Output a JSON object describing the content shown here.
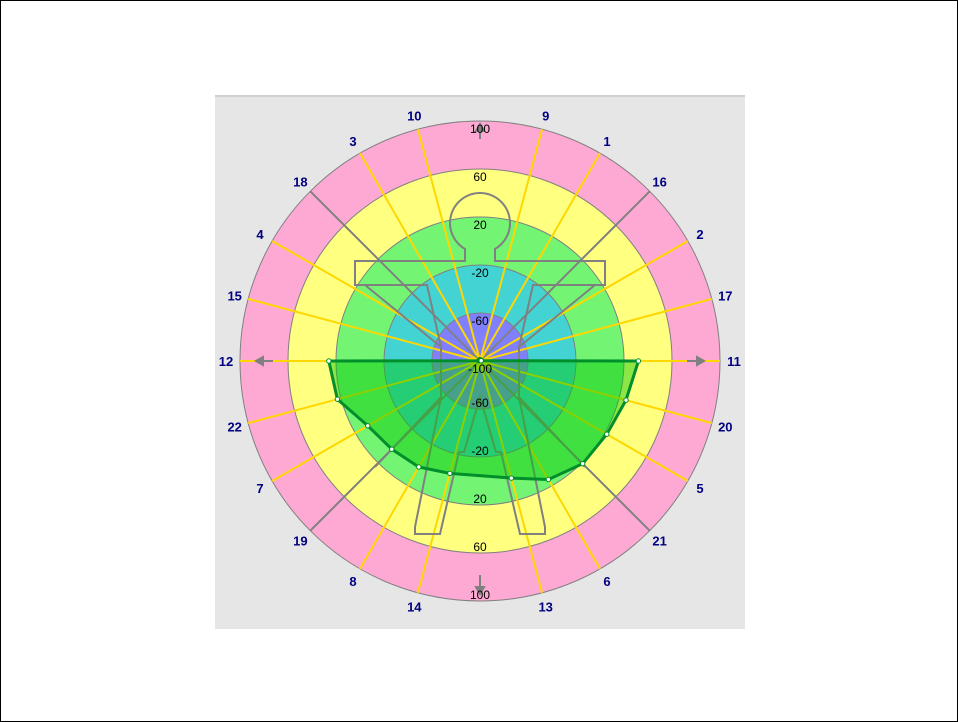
{
  "colors": {
    "ring_100": "#fda9d3",
    "ring_60": "#ffff80",
    "ring_20": "#73f573",
    "ring_neg20": "#44d3d3",
    "ring_neg60": "#8080ff",
    "spoke_yellow": "#ffd700",
    "spoke_gray": "#808080",
    "fill_green": "#00c800",
    "line_green": "#008f2a",
    "label_blue": "#000080",
    "figure": "#808080"
  },
  "chart_data": {
    "type": "polar-target",
    "rings": [
      100,
      60,
      20,
      -20,
      -60,
      -100
    ],
    "r_range": [
      -100,
      100
    ],
    "top_ticks": [
      "100",
      "60",
      "20",
      "-20",
      "-60",
      "-100"
    ],
    "bottom_ticks": [
      "-60",
      "-20",
      "20",
      "60",
      "100"
    ],
    "spokes": [
      {
        "label": "11",
        "angle": 0,
        "style": "yellow"
      },
      {
        "label": "17",
        "angle": 15,
        "style": "yellow"
      },
      {
        "label": "2",
        "angle": 30,
        "style": "yellow"
      },
      {
        "label": "16",
        "angle": 45,
        "style": "gray"
      },
      {
        "label": "1",
        "angle": 60,
        "style": "yellow"
      },
      {
        "label": "9",
        "angle": 75,
        "style": "yellow"
      },
      {
        "label": "10",
        "angle": 105,
        "style": "yellow"
      },
      {
        "label": "3",
        "angle": 120,
        "style": "yellow"
      },
      {
        "label": "18",
        "angle": 135,
        "style": "gray"
      },
      {
        "label": "4",
        "angle": 150,
        "style": "yellow"
      },
      {
        "label": "15",
        "angle": 165,
        "style": "yellow"
      },
      {
        "label": "12",
        "angle": 180,
        "style": "yellow"
      },
      {
        "label": "22",
        "angle": 195,
        "style": "yellow"
      },
      {
        "label": "7",
        "angle": 210,
        "style": "yellow"
      },
      {
        "label": "19",
        "angle": 225,
        "style": "gray"
      },
      {
        "label": "8",
        "angle": 240,
        "style": "yellow"
      },
      {
        "label": "14",
        "angle": 255,
        "style": "yellow"
      },
      {
        "label": "13",
        "angle": 285,
        "style": "yellow"
      },
      {
        "label": "6",
        "angle": 300,
        "style": "yellow"
      },
      {
        "label": "21",
        "angle": 315,
        "style": "gray"
      },
      {
        "label": "5",
        "angle": 330,
        "style": "yellow"
      },
      {
        "label": "20",
        "angle": 345,
        "style": "yellow"
      }
    ],
    "series": [
      {
        "points": [
          {
            "angle": 0,
            "value": 32
          },
          {
            "angle": 345,
            "value": 26
          },
          {
            "angle": 330,
            "value": 22
          },
          {
            "angle": 315,
            "value": 21
          },
          {
            "angle": 300,
            "value": 14
          },
          {
            "angle": 285,
            "value": 1
          },
          {
            "angle": 255,
            "value": -3
          },
          {
            "angle": 240,
            "value": 2
          },
          {
            "angle": 225,
            "value": 4
          },
          {
            "angle": 210,
            "value": 8
          },
          {
            "angle": 195,
            "value": 23
          },
          {
            "angle": 180,
            "value": 26
          },
          {
            "angle": 165,
            "value": -99
          },
          {
            "angle": 150,
            "value": -99
          },
          {
            "angle": 135,
            "value": -99
          },
          {
            "angle": 120,
            "value": -99
          },
          {
            "angle": 105,
            "value": -99
          },
          {
            "angle": 90,
            "value": -99
          },
          {
            "angle": 75,
            "value": -99
          },
          {
            "angle": 60,
            "value": -99
          },
          {
            "angle": 45,
            "value": -99
          },
          {
            "angle": 30,
            "value": -99
          },
          {
            "angle": 15,
            "value": -99
          }
        ]
      }
    ]
  }
}
